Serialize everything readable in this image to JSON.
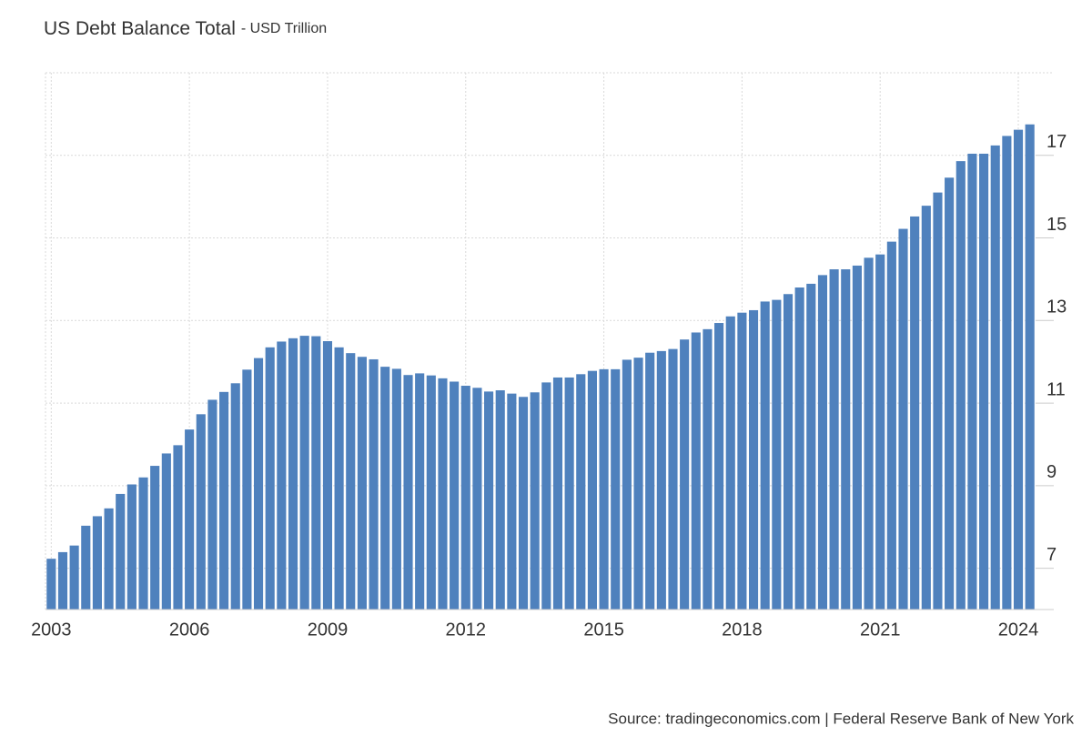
{
  "chart_data": {
    "type": "bar",
    "title": "US Debt Balance Total",
    "subtitle": "- USD Trillion",
    "source": "Source: tradingeconomics.com | Federal Reserve Bank of New York",
    "categories": [
      "2003",
      null,
      null,
      null,
      null,
      null,
      null,
      null,
      null,
      null,
      null,
      null,
      "2006",
      null,
      null,
      null,
      null,
      null,
      null,
      null,
      null,
      null,
      null,
      null,
      "2009",
      null,
      null,
      null,
      null,
      null,
      null,
      null,
      null,
      null,
      null,
      null,
      "2012",
      null,
      null,
      null,
      null,
      null,
      null,
      null,
      null,
      null,
      null,
      null,
      "2015",
      null,
      null,
      null,
      null,
      null,
      null,
      null,
      null,
      null,
      null,
      null,
      "2018",
      null,
      null,
      null,
      null,
      null,
      null,
      null,
      null,
      null,
      null,
      null,
      "2021",
      null,
      null,
      null,
      null,
      null,
      null,
      null,
      null,
      null,
      null,
      null,
      "2024",
      null
    ],
    "values": [
      7.23,
      7.39,
      7.55,
      8.03,
      8.26,
      8.45,
      8.8,
      9.03,
      9.2,
      9.48,
      9.78,
      9.98,
      10.36,
      10.73,
      11.08,
      11.27,
      11.48,
      11.81,
      12.09,
      12.35,
      12.49,
      12.57,
      12.63,
      12.62,
      12.5,
      12.35,
      12.21,
      12.12,
      12.06,
      11.88,
      11.83,
      11.68,
      11.72,
      11.67,
      11.6,
      11.52,
      11.42,
      11.37,
      11.28,
      11.31,
      11.23,
      11.15,
      11.26,
      11.5,
      11.62,
      11.62,
      11.7,
      11.78,
      11.82,
      11.82,
      12.05,
      12.1,
      12.22,
      12.26,
      12.31,
      12.54,
      12.71,
      12.79,
      12.94,
      13.1,
      13.19,
      13.25,
      13.46,
      13.5,
      13.64,
      13.8,
      13.89,
      14.1,
      14.24,
      14.24,
      14.33,
      14.52,
      14.6,
      14.91,
      15.22,
      15.52,
      15.78,
      16.1,
      16.46,
      16.86,
      17.04,
      17.04,
      17.24,
      17.47,
      17.62,
      17.75
    ],
    "color": "#4f81bd",
    "ylim": [
      6,
      19
    ],
    "yticks": [
      7,
      9,
      11,
      13,
      15,
      17
    ],
    "grid": true
  }
}
